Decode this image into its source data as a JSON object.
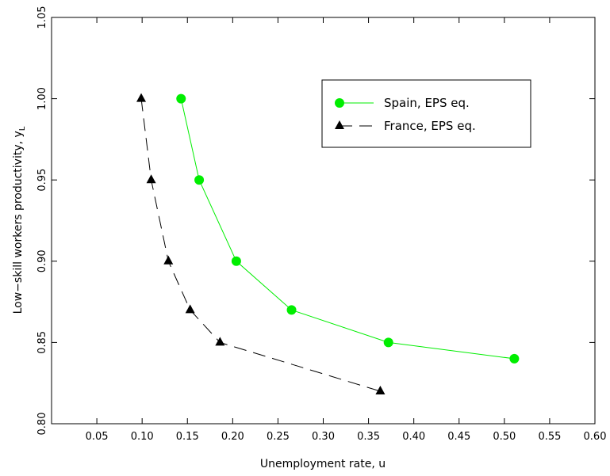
{
  "chart_data": {
    "type": "line",
    "xlabel": "Unemployment rate, u",
    "ylabel_main": "Low−skill workers productivity, y",
    "ylabel_sub": "L",
    "xlim": [
      0.0,
      0.6
    ],
    "ylim": [
      0.8,
      1.05
    ],
    "xticks": [
      0.05,
      0.1,
      0.15,
      0.2,
      0.25,
      0.3,
      0.35,
      0.4,
      0.45,
      0.5,
      0.55,
      0.6
    ],
    "xtick_labels": [
      "0.05",
      "0.10",
      "0.15",
      "0.20",
      "0.25",
      "0.30",
      "0.35",
      "0.40",
      "0.45",
      "0.50",
      "0.55",
      "0.60"
    ],
    "yticks": [
      0.8,
      0.85,
      0.9,
      0.95,
      1.0,
      1.05
    ],
    "ytick_labels": [
      "0.80",
      "0.85",
      "0.90",
      "0.95",
      "1.00",
      "1.05"
    ],
    "legend_position": "top-right",
    "series": [
      {
        "name": "Spain, EPS eq.",
        "color": "#00ee00",
        "marker": "circle",
        "line_style": "solid",
        "points": [
          {
            "x": 0.143,
            "y": 1.0
          },
          {
            "x": 0.163,
            "y": 0.95
          },
          {
            "x": 0.204,
            "y": 0.9
          },
          {
            "x": 0.265,
            "y": 0.87
          },
          {
            "x": 0.372,
            "y": 0.85
          },
          {
            "x": 0.511,
            "y": 0.84
          }
        ]
      },
      {
        "name": "France, EPS eq.",
        "color": "#000000",
        "marker": "triangle",
        "line_style": "dashed",
        "points": [
          {
            "x": 0.099,
            "y": 1.0
          },
          {
            "x": 0.11,
            "y": 0.95
          },
          {
            "x": 0.129,
            "y": 0.9
          },
          {
            "x": 0.153,
            "y": 0.87
          },
          {
            "x": 0.186,
            "y": 0.85
          },
          {
            "x": 0.363,
            "y": 0.82
          }
        ]
      }
    ]
  }
}
